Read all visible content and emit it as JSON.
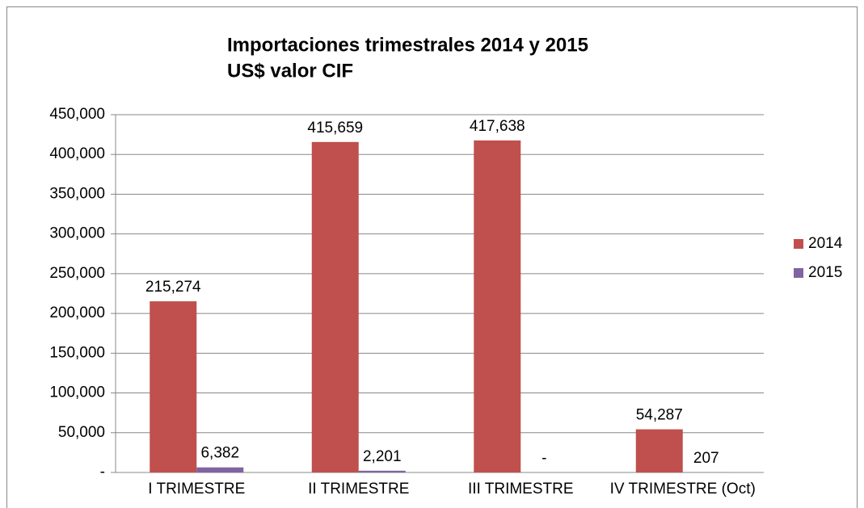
{
  "chart_data": {
    "type": "bar",
    "title": "Importaciones trimestrales 2014 y 2015",
    "subtitle": "US$ valor CIF",
    "categories": [
      "I TRIMESTRE",
      "II TRIMESTRE",
      "III TRIMESTRE",
      "IV TRIMESTRE (Oct)"
    ],
    "series": [
      {
        "name": "2014",
        "color": "#c0504d",
        "values": [
          215274,
          415659,
          417638,
          54287
        ],
        "value_labels": [
          "215,274",
          "415,659",
          "417,638",
          "54,287"
        ]
      },
      {
        "name": "2015",
        "color": "#8064a2",
        "values": [
          6382,
          2201,
          0,
          207
        ],
        "value_labels": [
          "6,382",
          "2,201",
          "-",
          "207"
        ]
      }
    ],
    "ylim": [
      0,
      450000
    ],
    "yticks": [
      {
        "value": 0,
        "label": "-"
      },
      {
        "value": 50000,
        "label": "50,000"
      },
      {
        "value": 100000,
        "label": "100,000"
      },
      {
        "value": 150000,
        "label": "150,000"
      },
      {
        "value": 200000,
        "label": "200,000"
      },
      {
        "value": 250000,
        "label": "250,000"
      },
      {
        "value": 300000,
        "label": "300,000"
      },
      {
        "value": 350000,
        "label": "350,000"
      },
      {
        "value": 400000,
        "label": "400,000"
      },
      {
        "value": 450000,
        "label": "450,000"
      }
    ],
    "grid": true,
    "legend": "right"
  }
}
